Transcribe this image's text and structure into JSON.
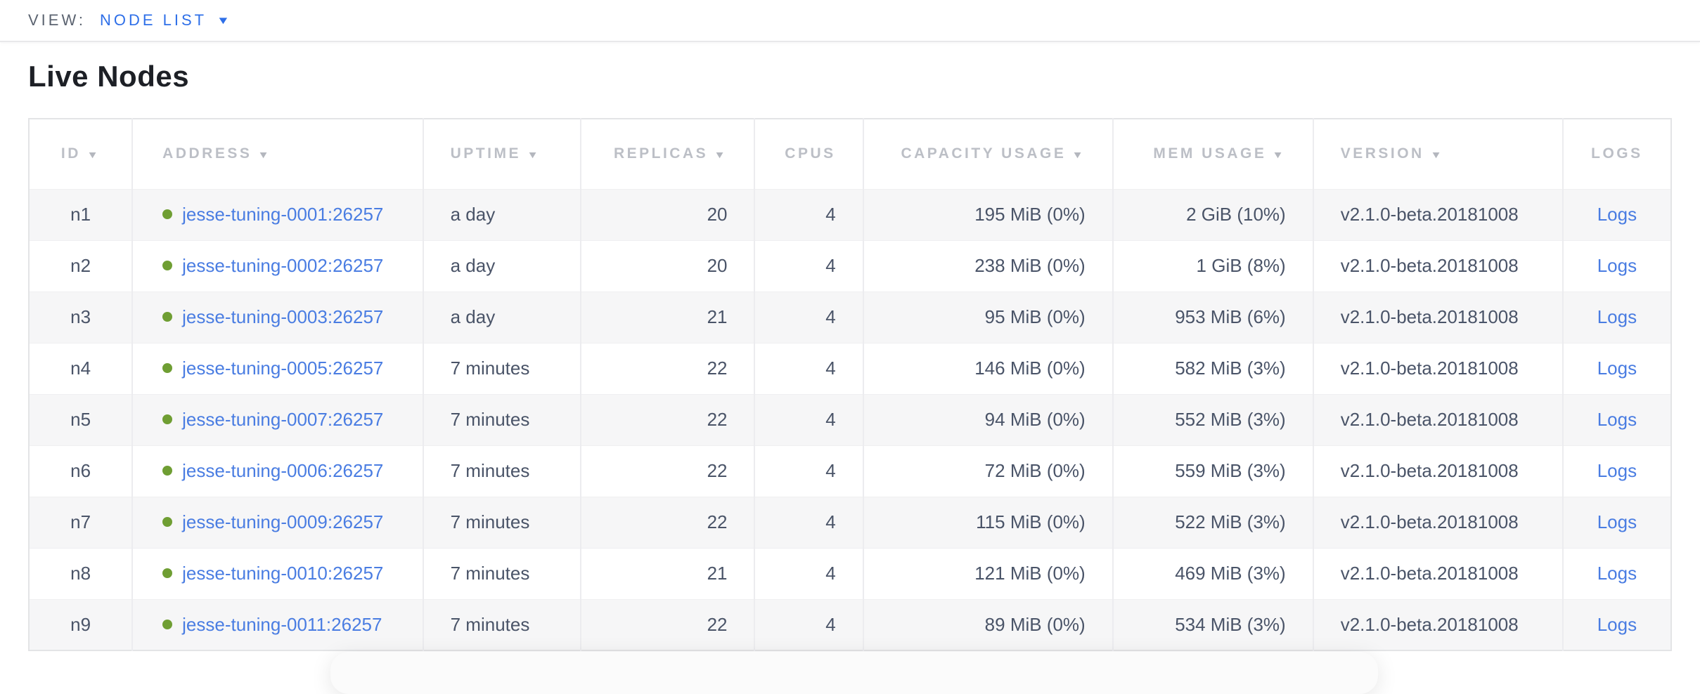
{
  "topbar": {
    "view_label": "VIEW:",
    "view_value": "NODE LIST"
  },
  "page": {
    "title": "Live Nodes"
  },
  "icons": {
    "dropdown_caret": "▼",
    "sort_arrow": "▼",
    "node_status_dot": "healthy-green-dot"
  },
  "colors": {
    "accent_blue": "#2e6fe8",
    "link_blue": "#4a7de2",
    "healthy_green": "#6f9e33",
    "header_text_gray": "#bcbfc6",
    "body_text": "#4a5468",
    "row_stripe": "#f6f6f7"
  },
  "table": {
    "columns": [
      {
        "key": "id",
        "label": "ID",
        "sortable": true,
        "align": "center"
      },
      {
        "key": "address",
        "label": "ADDRESS",
        "sortable": true,
        "align": "left"
      },
      {
        "key": "uptime",
        "label": "UPTIME",
        "sortable": true,
        "align": "left"
      },
      {
        "key": "replicas",
        "label": "REPLICAS",
        "sortable": true,
        "align": "right"
      },
      {
        "key": "cpus",
        "label": "CPUS",
        "sortable": false,
        "align": "right"
      },
      {
        "key": "capacity",
        "label": "CAPACITY USAGE",
        "sortable": true,
        "align": "right"
      },
      {
        "key": "mem",
        "label": "MEM USAGE",
        "sortable": true,
        "align": "right"
      },
      {
        "key": "version",
        "label": "VERSION",
        "sortable": true,
        "align": "left"
      },
      {
        "key": "logs",
        "label": "LOGS",
        "sortable": false,
        "align": "center"
      }
    ],
    "rows": [
      {
        "id": "n1",
        "address": "jesse-tuning-0001:26257",
        "uptime": "a day",
        "replicas": "20",
        "cpus": "4",
        "capacity": "195 MiB (0%)",
        "mem": "2 GiB (10%)",
        "version": "v2.1.0-beta.20181008",
        "logs": "Logs"
      },
      {
        "id": "n2",
        "address": "jesse-tuning-0002:26257",
        "uptime": "a day",
        "replicas": "20",
        "cpus": "4",
        "capacity": "238 MiB (0%)",
        "mem": "1 GiB (8%)",
        "version": "v2.1.0-beta.20181008",
        "logs": "Logs"
      },
      {
        "id": "n3",
        "address": "jesse-tuning-0003:26257",
        "uptime": "a day",
        "replicas": "21",
        "cpus": "4",
        "capacity": "95 MiB (0%)",
        "mem": "953 MiB (6%)",
        "version": "v2.1.0-beta.20181008",
        "logs": "Logs"
      },
      {
        "id": "n4",
        "address": "jesse-tuning-0005:26257",
        "uptime": "7 minutes",
        "replicas": "22",
        "cpus": "4",
        "capacity": "146 MiB (0%)",
        "mem": "582 MiB (3%)",
        "version": "v2.1.0-beta.20181008",
        "logs": "Logs"
      },
      {
        "id": "n5",
        "address": "jesse-tuning-0007:26257",
        "uptime": "7 minutes",
        "replicas": "22",
        "cpus": "4",
        "capacity": "94 MiB (0%)",
        "mem": "552 MiB (3%)",
        "version": "v2.1.0-beta.20181008",
        "logs": "Logs"
      },
      {
        "id": "n6",
        "address": "jesse-tuning-0006:26257",
        "uptime": "7 minutes",
        "replicas": "22",
        "cpus": "4",
        "capacity": "72 MiB (0%)",
        "mem": "559 MiB (3%)",
        "version": "v2.1.0-beta.20181008",
        "logs": "Logs"
      },
      {
        "id": "n7",
        "address": "jesse-tuning-0009:26257",
        "uptime": "7 minutes",
        "replicas": "22",
        "cpus": "4",
        "capacity": "115 MiB (0%)",
        "mem": "522 MiB (3%)",
        "version": "v2.1.0-beta.20181008",
        "logs": "Logs"
      },
      {
        "id": "n8",
        "address": "jesse-tuning-0010:26257",
        "uptime": "7 minutes",
        "replicas": "21",
        "cpus": "4",
        "capacity": "121 MiB (0%)",
        "mem": "469 MiB (3%)",
        "version": "v2.1.0-beta.20181008",
        "logs": "Logs"
      },
      {
        "id": "n9",
        "address": "jesse-tuning-0011:26257",
        "uptime": "7 minutes",
        "replicas": "22",
        "cpus": "4",
        "capacity": "89 MiB (0%)",
        "mem": "534 MiB (3%)",
        "version": "v2.1.0-beta.20181008",
        "logs": "Logs"
      }
    ]
  }
}
